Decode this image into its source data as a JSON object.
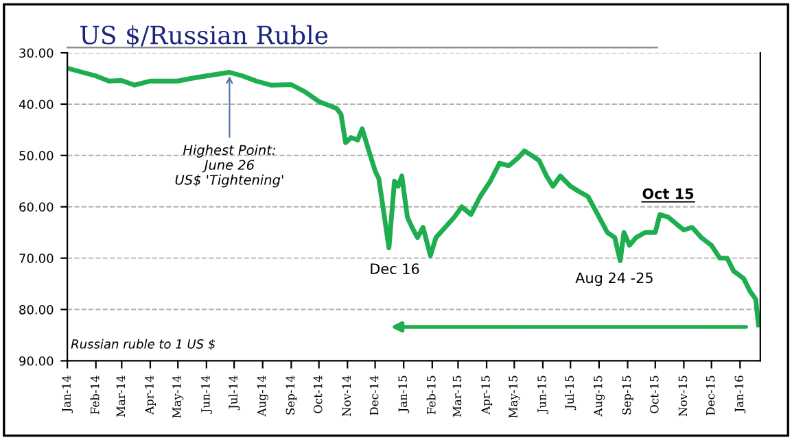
{
  "chart_data": {
    "type": "line",
    "title": "US $/Russian Ruble",
    "x": [
      "2014-01-01",
      "2014-02-01",
      "2014-02-15",
      "2014-03-01",
      "2014-03-15",
      "2014-04-01",
      "2014-05-01",
      "2014-05-15",
      "2014-06-01",
      "2014-06-26",
      "2014-07-10",
      "2014-07-25",
      "2014-08-10",
      "2014-09-01",
      "2014-09-15",
      "2014-10-01",
      "2014-10-20",
      "2014-10-25",
      "2014-10-30",
      "2014-11-05",
      "2014-11-12",
      "2014-11-17",
      "2014-11-24",
      "2014-12-01",
      "2014-12-05",
      "2014-12-16",
      "2014-12-22",
      "2014-12-26",
      "2014-12-30",
      "2015-01-05",
      "2015-01-10",
      "2015-01-16",
      "2015-01-22",
      "2015-01-30",
      "2015-02-05",
      "2015-02-15",
      "2015-02-25",
      "2015-03-05",
      "2015-03-15",
      "2015-03-25",
      "2015-04-05",
      "2015-04-15",
      "2015-04-25",
      "2015-05-05",
      "2015-05-12",
      "2015-05-20",
      "2015-05-28",
      "2015-06-05",
      "2015-06-12",
      "2015-06-20",
      "2015-07-01",
      "2015-07-10",
      "2015-07-20",
      "2015-08-01",
      "2015-08-10",
      "2015-08-18",
      "2015-08-24",
      "2015-08-28",
      "2015-09-03",
      "2015-09-10",
      "2015-09-20",
      "2015-10-01",
      "2015-10-06",
      "2015-10-15",
      "2015-10-25",
      "2015-11-01",
      "2015-11-10",
      "2015-11-20",
      "2015-12-01",
      "2015-12-10",
      "2015-12-18",
      "2015-12-25",
      "2016-01-05",
      "2016-01-12",
      "2016-01-18",
      "2016-01-21"
    ],
    "series": [
      {
        "color": "#1fae4f",
        "values": [
          33,
          34.5,
          35.5,
          35.4,
          36.3,
          35.5,
          35.5,
          35,
          34.5,
          33.8,
          34.5,
          35.5,
          36.3,
          36.2,
          37.5,
          39.5,
          40.8,
          42,
          47.5,
          46.5,
          47,
          44.8,
          49,
          53,
          54.5,
          68,
          55,
          56,
          54,
          62,
          64,
          66,
          64,
          69.5,
          66,
          64,
          62,
          60,
          61.5,
          58,
          55,
          51.5,
          52,
          50.5,
          49.1,
          50,
          51,
          54,
          56,
          54,
          56,
          57,
          58,
          62,
          65,
          66,
          70.5,
          65,
          67.5,
          66,
          65,
          65,
          61.5,
          62,
          63.5,
          64.5,
          64,
          66,
          67.5,
          70,
          70,
          72.5,
          74,
          76.5,
          78,
          83
        ]
      }
    ],
    "ylim": [
      90,
      30
    ],
    "yticks": [
      {
        "value": 30,
        "label": "30.00"
      },
      {
        "value": 40,
        "label": "40.00"
      },
      {
        "value": 50,
        "label": "50.00"
      },
      {
        "value": 60,
        "label": "60.00"
      },
      {
        "value": 70,
        "label": "70.00"
      },
      {
        "value": 80,
        "label": "80.00"
      },
      {
        "value": 90,
        "label": "90.00"
      }
    ],
    "xlim": [
      "2014-01-01",
      "2016-01-23"
    ],
    "xticks": [
      {
        "value": "2014-01-01",
        "label": "Jan-14"
      },
      {
        "value": "2014-02-01",
        "label": "Feb-14"
      },
      {
        "value": "2014-03-01",
        "label": "Mar-14"
      },
      {
        "value": "2014-04-01",
        "label": "Apr-14"
      },
      {
        "value": "2014-05-01",
        "label": "May-14"
      },
      {
        "value": "2014-06-01",
        "label": "Jun-14"
      },
      {
        "value": "2014-07-01",
        "label": "Jul-14"
      },
      {
        "value": "2014-08-01",
        "label": "Aug-14"
      },
      {
        "value": "2014-09-01",
        "label": "Sep-14"
      },
      {
        "value": "2014-10-01",
        "label": "Oct-14"
      },
      {
        "value": "2014-11-01",
        "label": "Nov-14"
      },
      {
        "value": "2014-12-01",
        "label": "Dec-14"
      },
      {
        "value": "2015-01-01",
        "label": "Jan-15"
      },
      {
        "value": "2015-02-01",
        "label": "Feb-15"
      },
      {
        "value": "2015-03-01",
        "label": "Mar-15"
      },
      {
        "value": "2015-04-01",
        "label": "Apr-15"
      },
      {
        "value": "2015-05-01",
        "label": "May-15"
      },
      {
        "value": "2015-06-01",
        "label": "Jun-15"
      },
      {
        "value": "2015-07-01",
        "label": "Jul-15"
      },
      {
        "value": "2015-08-01",
        "label": "Aug-15"
      },
      {
        "value": "2015-09-01",
        "label": "Sep-15"
      },
      {
        "value": "2015-10-01",
        "label": "Oct-15"
      },
      {
        "value": "2015-11-01",
        "label": "Nov-15"
      },
      {
        "value": "2015-12-01",
        "label": "Dec-15"
      },
      {
        "value": "2016-01-01",
        "label": "Jan-16"
      }
    ],
    "grid": "y",
    "marker": "none",
    "line_style": "solid",
    "legend": false,
    "annotations": [
      {
        "text": "Highest Point:\nJune 26\nUS$ 'Tightening'",
        "x": "2014-06-26",
        "y": 33.8
      },
      {
        "text": "Dec 16",
        "x": "2014-12-16",
        "y": 68
      },
      {
        "text": "Aug 24 -25",
        "x": "2015-08-24",
        "y": 70.5
      },
      {
        "text": "Oct 15",
        "x": "2015-10-15",
        "y": 62
      },
      "Russian ruble to 1 US $"
    ]
  }
}
